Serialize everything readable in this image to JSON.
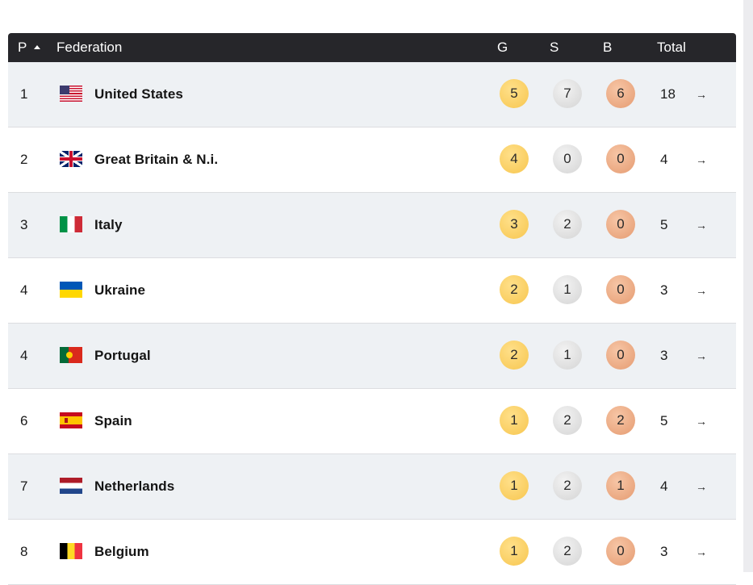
{
  "header": {
    "pos": "P",
    "federation": "Federation",
    "gold": "G",
    "silver": "S",
    "bronze": "B",
    "total": "Total"
  },
  "rows": [
    {
      "pos": "1",
      "flag": "us-flag-icon",
      "name": "United States",
      "gold": "5",
      "silver": "7",
      "bronze": "6",
      "total": "18",
      "arrow": "→"
    },
    {
      "pos": "2",
      "flag": "gb-flag-icon",
      "name": "Great Britain & N.i.",
      "gold": "4",
      "silver": "0",
      "bronze": "0",
      "total": "4",
      "arrow": "→"
    },
    {
      "pos": "3",
      "flag": "it-flag-icon",
      "name": "Italy",
      "gold": "3",
      "silver": "2",
      "bronze": "0",
      "total": "5",
      "arrow": "→"
    },
    {
      "pos": "4",
      "flag": "ua-flag-icon",
      "name": "Ukraine",
      "gold": "2",
      "silver": "1",
      "bronze": "0",
      "total": "3",
      "arrow": "→"
    },
    {
      "pos": "4",
      "flag": "pt-flag-icon",
      "name": "Portugal",
      "gold": "2",
      "silver": "1",
      "bronze": "0",
      "total": "3",
      "arrow": "→"
    },
    {
      "pos": "6",
      "flag": "es-flag-icon",
      "name": "Spain",
      "gold": "1",
      "silver": "2",
      "bronze": "2",
      "total": "5",
      "arrow": "→"
    },
    {
      "pos": "7",
      "flag": "nl-flag-icon",
      "name": "Netherlands",
      "gold": "1",
      "silver": "2",
      "bronze": "1",
      "total": "4",
      "arrow": "→"
    },
    {
      "pos": "8",
      "flag": "be-flag-icon",
      "name": "Belgium",
      "gold": "1",
      "silver": "2",
      "bronze": "0",
      "total": "3",
      "arrow": "→"
    }
  ],
  "colors": {
    "header_bg": "#26262a",
    "row_alt_bg": "#eef1f4",
    "gold": "#f7c64f",
    "silver": "#d4d4d4",
    "bronze": "#e59b71"
  }
}
